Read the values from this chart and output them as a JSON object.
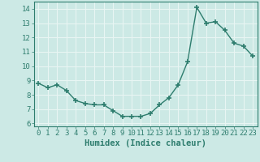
{
  "x": [
    0,
    1,
    2,
    3,
    4,
    5,
    6,
    7,
    8,
    9,
    10,
    11,
    12,
    13,
    14,
    15,
    16,
    17,
    18,
    19,
    20,
    21,
    22,
    23
  ],
  "y": [
    8.8,
    8.5,
    8.7,
    8.3,
    7.6,
    7.4,
    7.3,
    7.3,
    6.9,
    6.5,
    6.5,
    6.5,
    6.7,
    7.3,
    7.8,
    8.7,
    10.3,
    14.1,
    13.0,
    13.1,
    12.5,
    11.6,
    11.4,
    10.7
  ],
  "line_color": "#2e7d6e",
  "marker": "+",
  "markersize": 4,
  "markeredgewidth": 1.2,
  "linewidth": 1.0,
  "xlabel": "Humidex (Indice chaleur)",
  "xlabel_fontsize": 7.5,
  "xlabel_fontweight": "bold",
  "bg_color": "#cce9e5",
  "grid_color": "#e8f5f3",
  "ylim": [
    5.8,
    14.5
  ],
  "xlim": [
    -0.5,
    23.5
  ],
  "yticks": [
    6,
    7,
    8,
    9,
    10,
    11,
    12,
    13,
    14
  ],
  "xticks": [
    0,
    1,
    2,
    3,
    4,
    5,
    6,
    7,
    8,
    9,
    10,
    11,
    12,
    13,
    14,
    15,
    16,
    17,
    18,
    19,
    20,
    21,
    22,
    23
  ],
  "tick_fontsize": 6.5,
  "figsize": [
    3.2,
    2.0
  ],
  "dpi": 100
}
